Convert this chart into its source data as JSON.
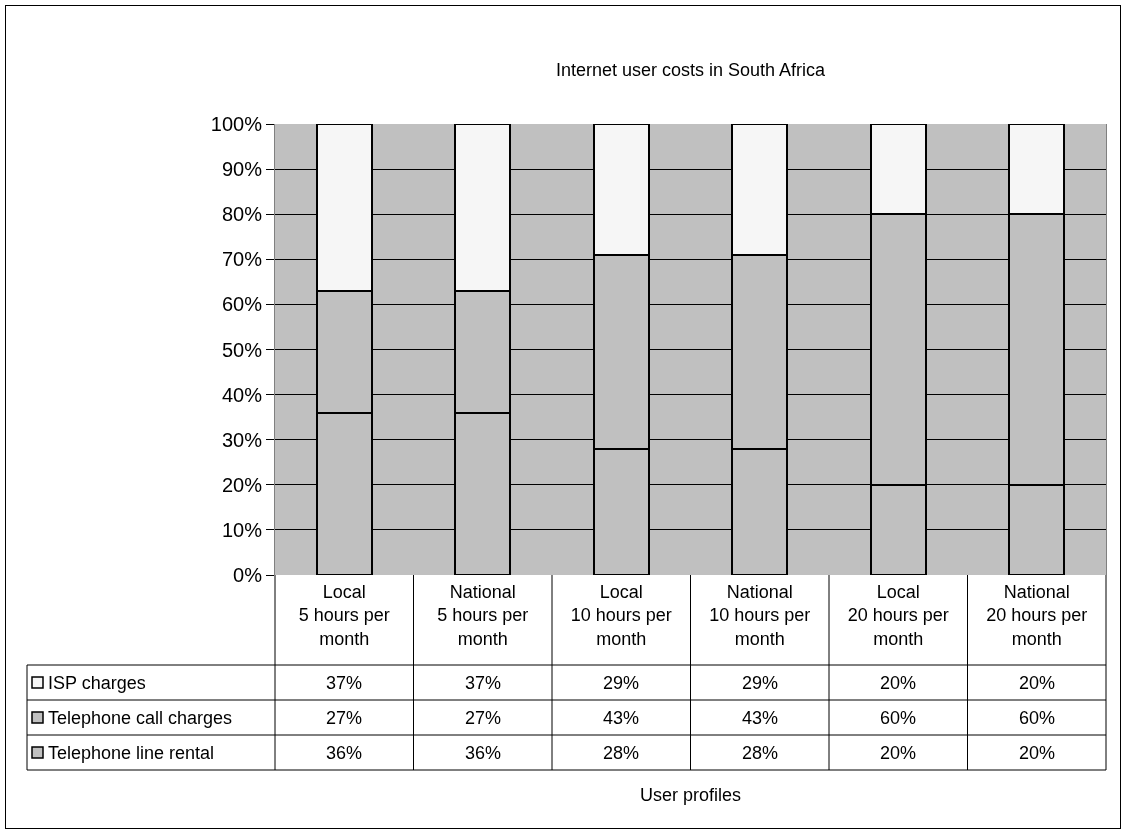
{
  "chart_data": {
    "type": "bar",
    "title": "Internet user costs in South Africa",
    "annotations": [
      "User profiles"
    ],
    "categories": [
      "Local\n5 hours per month",
      "National\n5 hours per month",
      "Local\n10 hours per month",
      "National\n10 hours per month",
      "Local\n20 hours per month",
      "National\n20 hours per month"
    ],
    "stacked": true,
    "series": [
      {
        "name": "Telephone line rental",
        "color": "#c0c0c0",
        "values": [
          36,
          36,
          28,
          28,
          20,
          20
        ],
        "value_labels": [
          "36%",
          "36%",
          "28%",
          "28%",
          "20%",
          "20%"
        ]
      },
      {
        "name": "Telephone call charges",
        "color": "#c0c0c0",
        "values": [
          27,
          27,
          43,
          43,
          60,
          60
        ],
        "value_labels": [
          "27%",
          "27%",
          "43%",
          "43%",
          "60%",
          "60%"
        ]
      },
      {
        "name": "ISP charges",
        "color": "#f6f6f6",
        "values": [
          37,
          37,
          29,
          29,
          20,
          20
        ],
        "value_labels": [
          "37%",
          "37%",
          "29%",
          "29%",
          "20%",
          "20%"
        ]
      }
    ],
    "ylim": [
      0,
      100
    ],
    "yticks": [
      {
        "value": 0,
        "label": "0%"
      },
      {
        "value": 10,
        "label": "10%"
      },
      {
        "value": 20,
        "label": "20%"
      },
      {
        "value": 30,
        "label": "30%"
      },
      {
        "value": 40,
        "label": "40%"
      },
      {
        "value": 50,
        "label": "50%"
      },
      {
        "value": 60,
        "label": "60%"
      },
      {
        "value": 70,
        "label": "70%"
      },
      {
        "value": 80,
        "label": "80%"
      },
      {
        "value": 90,
        "label": "90%"
      },
      {
        "value": 100,
        "label": "100%"
      }
    ],
    "grid": "y",
    "legend": "bottom left"
  }
}
